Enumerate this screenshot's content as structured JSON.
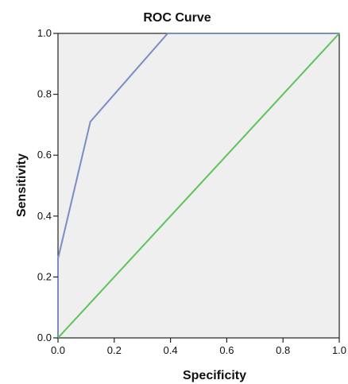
{
  "chart_data": {
    "type": "line",
    "title": "ROC Curve",
    "xlabel": "Specificity",
    "ylabel": "Sensitivity",
    "xlim": [
      0,
      1
    ],
    "ylim": [
      0,
      1
    ],
    "x_ticks": [
      "0.0",
      "0.2",
      "0.4",
      "0.6",
      "0.8",
      "1.0"
    ],
    "y_ticks": [
      "0.0",
      "0.2",
      "0.4",
      "0.6",
      "0.8",
      "1.0"
    ],
    "grid": false,
    "plot_background": "#efefef",
    "series": [
      {
        "color": "#7a8cc4",
        "x": [
          0.0,
          0.0,
          0.115,
          0.39,
          1.0
        ],
        "y": [
          0.0,
          0.26,
          0.71,
          1.0,
          1.0
        ]
      },
      {
        "color": "#5cc25a",
        "x": [
          0.0,
          1.0
        ],
        "y": [
          0.0,
          1.0
        ]
      }
    ]
  }
}
